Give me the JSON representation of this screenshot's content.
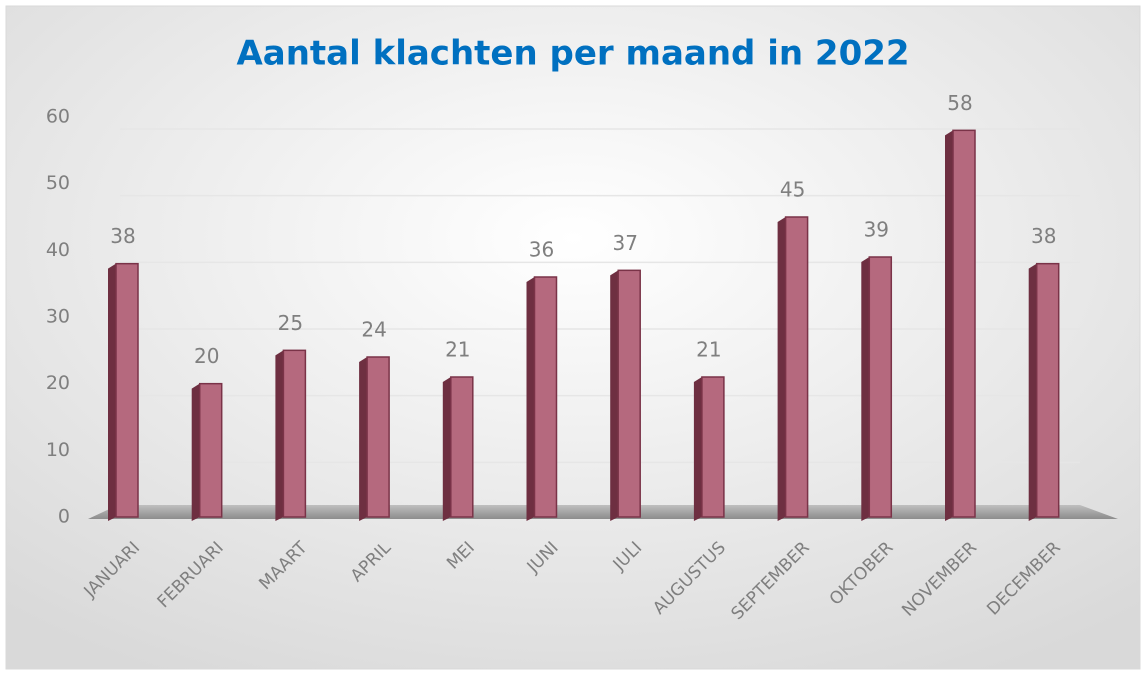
{
  "chart_data": {
    "type": "bar",
    "title": "Aantal klachten per maand in 2022",
    "categories": [
      "JANUARI",
      "FEBRUARI",
      "MAART",
      "APRIL",
      "MEI",
      "JUNI",
      "JULI",
      "AUGUSTUS",
      "SEPTEMBER",
      "OKTOBER",
      "NOVEMBER",
      "DECEMBER"
    ],
    "values": [
      38,
      20,
      25,
      24,
      21,
      36,
      37,
      21,
      45,
      39,
      58,
      38
    ],
    "color": "#b5697e",
    "ylim": [
      0,
      60
    ],
    "yticks": [
      0,
      10,
      20,
      30,
      40,
      50,
      60
    ],
    "grid": true
  }
}
